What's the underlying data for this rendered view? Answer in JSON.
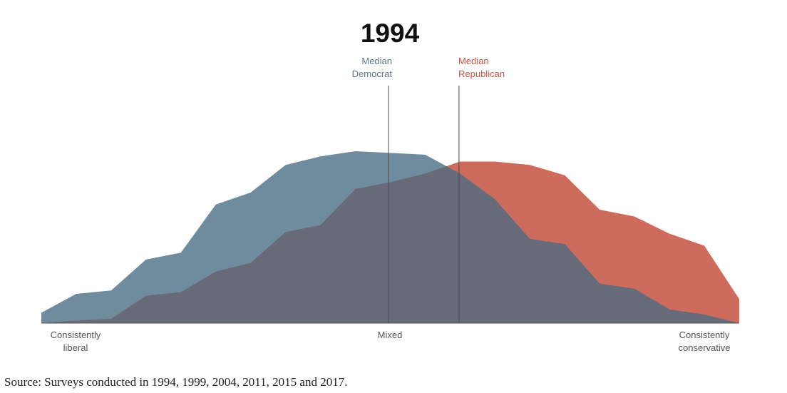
{
  "chart_data": {
    "type": "area",
    "title": "1994",
    "x_categories_label": [
      "Consistently liberal",
      "Mixed",
      "Consistently conservative"
    ],
    "x_points": 21,
    "x_range": [
      0,
      20
    ],
    "y_range": [
      0,
      100
    ],
    "series": [
      {
        "name": "Democrats",
        "color": "#6f8c9e",
        "values": [
          6,
          17,
          19,
          37,
          41,
          69,
          76,
          92,
          97,
          100,
          99,
          98,
          87,
          72,
          49,
          46,
          23,
          20,
          8,
          5,
          0
        ]
      },
      {
        "name": "Republicans",
        "color": "#cd6b5d",
        "values": [
          0,
          1.5,
          2.5,
          16,
          18,
          30,
          35,
          53,
          57,
          78,
          82,
          87,
          94,
          94,
          92,
          86,
          66,
          62,
          52,
          45,
          14
        ]
      }
    ],
    "overlap_color": "#676a78",
    "median_democrat_x": 10,
    "median_republican_x": 12,
    "median_democrat_label": [
      "Median",
      "Democrat"
    ],
    "median_republican_label": [
      "Median",
      "Republican"
    ],
    "axis_left": [
      "Consistently",
      "liberal"
    ],
    "axis_mid": "Mixed",
    "axis_right": [
      "Consistently",
      "conservative"
    ]
  },
  "source_text": "Source: Surveys conducted in 1994, 1999, 2004, 2011, 2015 and 2017."
}
